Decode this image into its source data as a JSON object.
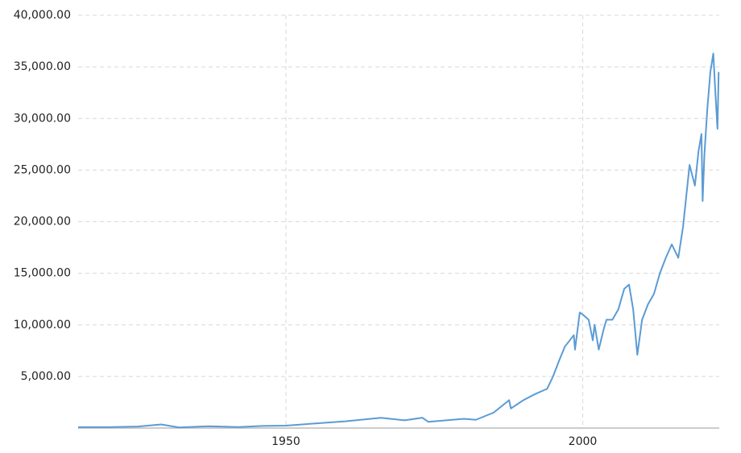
{
  "chart_data": {
    "type": "line",
    "x": [
      1915,
      1920,
      1925,
      1929,
      1932,
      1937,
      1942,
      1946,
      1950,
      1955,
      1960,
      1966,
      1970,
      1973,
      1974,
      1980,
      1982,
      1985,
      1987.6,
      1987.9,
      1990,
      1992,
      1994,
      1995,
      1996,
      1997,
      1998.5,
      1998.7,
      1999.5,
      2000,
      2001,
      2001.7,
      2002,
      2002.7,
      2003.5,
      2004,
      2005,
      2006,
      2007,
      2007.8,
      2008.5,
      2009.2,
      2010,
      2011,
      2012,
      2013,
      2014,
      2015,
      2016.1,
      2016.9,
      2018,
      2018.9,
      2019.5,
      2020,
      2020.2,
      2020.5,
      2021,
      2021.5,
      2022,
      2022.3,
      2022.5,
      2022.7,
      2022.9
    ],
    "series": [
      {
        "color": "#5b9bd5",
        "values": [
          90,
          90,
          150,
          350,
          60,
          180,
          100,
          200,
          230,
          450,
          650,
          990,
          750,
          1000,
          600,
          900,
          800,
          1500,
          2700,
          1900,
          2700,
          3300,
          3800,
          5000,
          6500,
          7900,
          9000,
          7600,
          11200,
          11000,
          10500,
          8500,
          10000,
          7600,
          9500,
          10500,
          10500,
          11500,
          13500,
          13900,
          11500,
          7100,
          10500,
          12000,
          13000,
          15000,
          16500,
          17800,
          16500,
          19500,
          25500,
          23500,
          26800,
          28500,
          22000,
          26500,
          31000,
          34500,
          36300,
          33000,
          31000,
          29000,
          34500
        ]
      }
    ],
    "xlim": [
      1915,
      2023
    ],
    "xticks": [
      1950,
      2000
    ],
    "ylim": [
      0,
      40000
    ],
    "yticks": [
      {
        "value": 5000,
        "label": "5,000.00"
      },
      {
        "value": 10000,
        "label": "10,000.00"
      },
      {
        "value": 15000,
        "label": "15,000.00"
      },
      {
        "value": 20000,
        "label": "20,000.00"
      },
      {
        "value": 25000,
        "label": "25,000.00"
      },
      {
        "value": 30000,
        "label": "30,000.00"
      },
      {
        "value": 35000,
        "label": "35,000.00"
      },
      {
        "value": 40000,
        "label": "40,000.00"
      }
    ],
    "grid": true
  }
}
